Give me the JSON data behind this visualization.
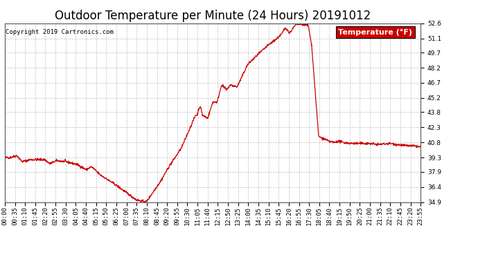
{
  "title": "Outdoor Temperature per Minute (24 Hours) 20191012",
  "copyright_text": "Copyright 2019 Cartronics.com",
  "legend_label": "Temperature (°F)",
  "line_color": "#cc0000",
  "legend_bg": "#cc0000",
  "legend_text_color": "#ffffff",
  "background_color": "#ffffff",
  "grid_color": "#b0b0b0",
  "ylim": [
    34.9,
    52.6
  ],
  "yticks": [
    34.9,
    36.4,
    37.9,
    39.3,
    40.8,
    42.3,
    43.8,
    45.2,
    46.7,
    48.2,
    49.7,
    51.1,
    52.6
  ],
  "xtick_labels": [
    "00:00",
    "00:35",
    "01:10",
    "01:45",
    "02:20",
    "02:55",
    "03:30",
    "04:05",
    "04:40",
    "05:15",
    "05:50",
    "06:25",
    "07:00",
    "07:35",
    "08:10",
    "08:45",
    "09:20",
    "09:55",
    "10:30",
    "11:05",
    "11:40",
    "12:15",
    "12:50",
    "13:25",
    "14:00",
    "14:35",
    "15:10",
    "15:45",
    "16:20",
    "16:55",
    "17:30",
    "18:05",
    "18:40",
    "19:15",
    "19:50",
    "20:25",
    "21:00",
    "21:35",
    "22:10",
    "22:45",
    "23:20",
    "23:55"
  ],
  "title_fontsize": 12,
  "axis_fontsize": 6.5,
  "copyright_fontsize": 6.5,
  "legend_fontsize": 8
}
